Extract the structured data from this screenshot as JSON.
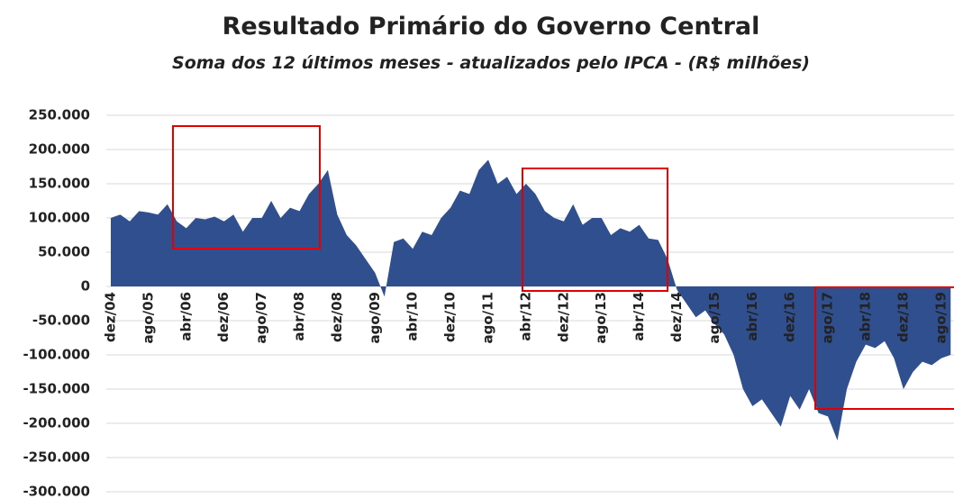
{
  "chart_data": {
    "type": "area",
    "title": "Resultado Primário do Governo Central",
    "subtitle": "Soma dos 12 últimos meses - atualizados pelo IPCA - (R$ milhões)",
    "categories": [
      "dez/04",
      null,
      null,
      null,
      "ago/05",
      null,
      null,
      null,
      "abr/06",
      null,
      null,
      null,
      "dez/06",
      null,
      null,
      null,
      "ago/07",
      null,
      null,
      null,
      "abr/08",
      null,
      null,
      null,
      "dez/08",
      null,
      null,
      null,
      "ago/09",
      null,
      null,
      null,
      "abr/10",
      null,
      null,
      null,
      "dez/10",
      null,
      null,
      null,
      "ago/11",
      null,
      null,
      null,
      "abr/12",
      null,
      null,
      null,
      "dez/12",
      null,
      null,
      null,
      "ago/13",
      null,
      null,
      null,
      "abr/14",
      null,
      null,
      null,
      "dez/14",
      null,
      null,
      null,
      "ago/15",
      null,
      null,
      null,
      "abr/16",
      null,
      null,
      null,
      "dez/16",
      null,
      null,
      null,
      "ago/17",
      null,
      null,
      null,
      "abr/18",
      null,
      null,
      null,
      "dez/18",
      null,
      null,
      null,
      "ago/19",
      null
    ],
    "values": [
      100000,
      105000,
      95000,
      110000,
      108000,
      105000,
      120000,
      95000,
      85000,
      100000,
      98000,
      102000,
      95000,
      105000,
      80000,
      100000,
      100000,
      125000,
      100000,
      115000,
      110000,
      135000,
      150000,
      170000,
      105000,
      75000,
      60000,
      40000,
      20000,
      -15000,
      65000,
      70000,
      55000,
      80000,
      75000,
      100000,
      115000,
      140000,
      135000,
      170000,
      185000,
      150000,
      160000,
      135000,
      150000,
      135000,
      110000,
      100000,
      95000,
      120000,
      90000,
      100000,
      100000,
      75000,
      85000,
      80000,
      90000,
      70000,
      68000,
      40000,
      -5000,
      -25000,
      -45000,
      -35000,
      -55000,
      -70000,
      -100000,
      -150000,
      -175000,
      -165000,
      -185000,
      -205000,
      -160000,
      -180000,
      -150000,
      -185000,
      -190000,
      -225000,
      -150000,
      -110000,
      -85000,
      -90000,
      -80000,
      -105000,
      -150000,
      -125000,
      -110000,
      -115000,
      -105000,
      -100000
    ],
    "color": "#2f4f8f",
    "ylim": [
      -300000,
      250000
    ],
    "yticks": [
      {
        "value": -300000,
        "label": "-300.000"
      },
      {
        "value": -250000,
        "label": "-250.000"
      },
      {
        "value": -200000,
        "label": "-200.000"
      },
      {
        "value": -150000,
        "label": "-150.000"
      },
      {
        "value": -100000,
        "label": "-100.000"
      },
      {
        "value": -50000,
        "label": "-50.000"
      },
      0,
      {
        "value": 50000,
        "label": "50.000"
      },
      {
        "value": 100000,
        "label": "100.000"
      },
      {
        "value": 150000,
        "label": "150.000"
      },
      {
        "value": 200000,
        "label": "200.000"
      },
      {
        "value": 250000,
        "label": "250.000"
      }
    ],
    "grid": true
  }
}
